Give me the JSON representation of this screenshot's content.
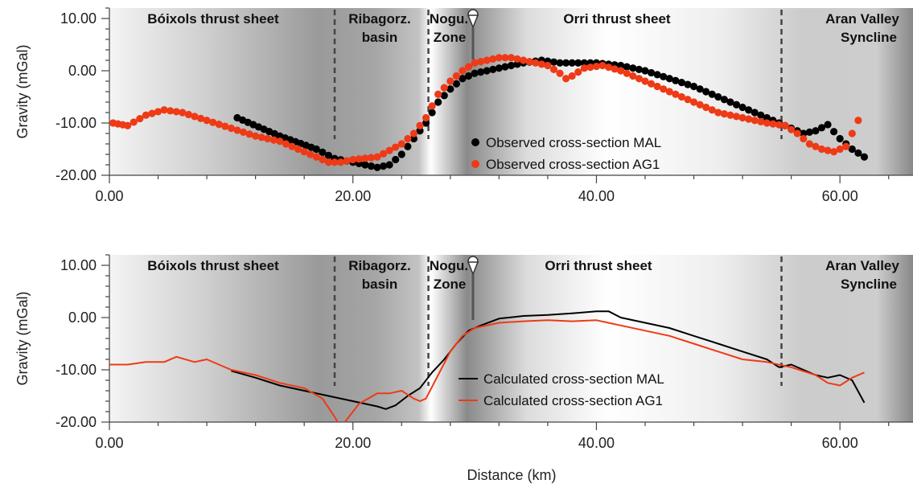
{
  "chart_data": [
    {
      "type": "scatter",
      "id": "observed",
      "ylabel": "Gravity (mGal)",
      "xlim": [
        0,
        66
      ],
      "ylim": [
        -20,
        12
      ],
      "xticks": [
        "0.00",
        "20.00",
        "40.00",
        "60.00"
      ],
      "yticks": [
        "10.00",
        "0.00",
        "-10.00",
        "-20.00"
      ],
      "regions": [
        "Bóixols thrust sheet",
        "Ribagorz.",
        "basin",
        "Nogu.",
        "Zone",
        "Orri thrust sheet",
        "Aran Valley",
        "Syncline"
      ],
      "series": [
        {
          "name": "Observed cross-section MAL",
          "color": "#000000",
          "x": [
            10.5,
            14,
            17,
            18.5,
            20,
            21,
            22,
            23,
            24,
            25,
            26,
            27,
            28,
            29,
            30,
            32,
            34,
            35.5,
            37,
            38,
            40,
            42,
            44,
            46,
            48,
            50,
            52,
            54,
            56,
            57,
            58,
            59,
            60,
            61,
            62
          ],
          "y": [
            -9,
            -12.5,
            -15,
            -16.8,
            -17.5,
            -18,
            -18.5,
            -18,
            -16,
            -13,
            -10,
            -6,
            -3.5,
            -1.5,
            -0.5,
            0.5,
            1.5,
            2,
            1.5,
            1.5,
            1.5,
            1,
            0,
            -1.5,
            -3,
            -5,
            -7,
            -9,
            -11,
            -12,
            -11.5,
            -10.3,
            -13,
            -15,
            -16.5
          ]
        },
        {
          "name": "Observed cross-section AG1",
          "color": "#ee3a16",
          "x": [
            0.3,
            1.5,
            3,
            4.5,
            6,
            8,
            10,
            12,
            14,
            16,
            18,
            19,
            20,
            22,
            24,
            25,
            26,
            27,
            28,
            29,
            30,
            31,
            32,
            33,
            34,
            35,
            36,
            37,
            37.5,
            38,
            39,
            40.5,
            42,
            44,
            46,
            48,
            50,
            52,
            54,
            55.5,
            56.5,
            57.5,
            58.5,
            59.5,
            60.5,
            61.5
          ],
          "y": [
            -10,
            -10.5,
            -8.5,
            -7.5,
            -8,
            -9.5,
            -11,
            -12.5,
            -13.5,
            -15.5,
            -17.5,
            -17.5,
            -17,
            -16.5,
            -14,
            -12,
            -9,
            -4.5,
            -2,
            0,
            1.5,
            2,
            2.5,
            2.5,
            2,
            1.5,
            1,
            -0.5,
            -1.5,
            -1,
            0.5,
            1,
            0,
            -2,
            -4,
            -6,
            -8,
            -9,
            -10,
            -10.5,
            -12,
            -14,
            -15,
            -15.5,
            -14.5,
            -9.5
          ]
        }
      ]
    },
    {
      "type": "line",
      "id": "calculated",
      "ylabel": "Gravity (mGal)",
      "xlabel": "Distance (km)",
      "xlim": [
        0,
        66
      ],
      "ylim": [
        -20,
        12
      ],
      "xticks": [
        "0.00",
        "20.00",
        "40.00",
        "60.00"
      ],
      "yticks": [
        "10.00",
        "0.00",
        "-10.00",
        "-20.00"
      ],
      "regions": [
        "Bóixols thrust sheet",
        "Ribagorz.",
        "basin",
        "Nogu.",
        "Zone",
        "Orri thrust sheet",
        "Aran Valley",
        "Syncline"
      ],
      "series": [
        {
          "name": "Calculated cross-section MAL",
          "color": "#000000",
          "x": [
            10,
            12,
            14,
            16,
            18,
            20,
            22,
            22.7,
            23.5,
            24.5,
            25.5,
            26.5,
            27.5,
            28.5,
            29.5,
            30.5,
            32,
            34,
            36,
            38,
            40,
            41,
            42,
            44,
            46,
            48,
            50,
            52,
            54,
            55,
            56,
            57,
            58,
            59,
            60,
            61,
            62
          ],
          "y": [
            -10.2,
            -11.5,
            -13,
            -14,
            -15,
            -16,
            -17,
            -17.5,
            -16.8,
            -15,
            -13.5,
            -10.5,
            -8,
            -5,
            -2.5,
            -1.5,
            -0.2,
            0.3,
            0.5,
            0.8,
            1.2,
            1.2,
            0,
            -1,
            -2,
            -3.5,
            -5,
            -6.5,
            -8,
            -9.5,
            -9,
            -10,
            -11,
            -11.5,
            -11,
            -12,
            -16.3
          ]
        },
        {
          "name": "Calculated cross-section AG1",
          "color": "#ee3a16",
          "x": [
            0,
            1.5,
            3,
            4.5,
            5.5,
            7,
            8,
            9,
            10,
            12,
            14,
            16,
            17.5,
            18.5,
            19,
            19.5,
            20.5,
            22,
            23,
            24,
            25,
            25.5,
            26,
            27,
            28,
            29,
            30,
            32,
            34,
            36,
            38,
            40,
            42,
            44,
            46,
            48,
            50,
            52,
            54,
            56,
            58,
            59,
            60,
            61,
            62
          ],
          "y": [
            -9,
            -9,
            -8.5,
            -8.5,
            -7.5,
            -8.5,
            -8,
            -9,
            -10,
            -11,
            -12.5,
            -13.5,
            -15.5,
            -19,
            -21,
            -19.5,
            -16.5,
            -14.5,
            -14.5,
            -14,
            -15.5,
            -16,
            -15.5,
            -11,
            -6.5,
            -3.5,
            -2,
            -1,
            -0.7,
            -0.5,
            -0.7,
            -0.5,
            -1.5,
            -2.5,
            -3.5,
            -5,
            -6.5,
            -8,
            -8.5,
            -9.5,
            -11,
            -12.5,
            -13,
            -11.5,
            -10.5
          ]
        }
      ]
    }
  ]
}
